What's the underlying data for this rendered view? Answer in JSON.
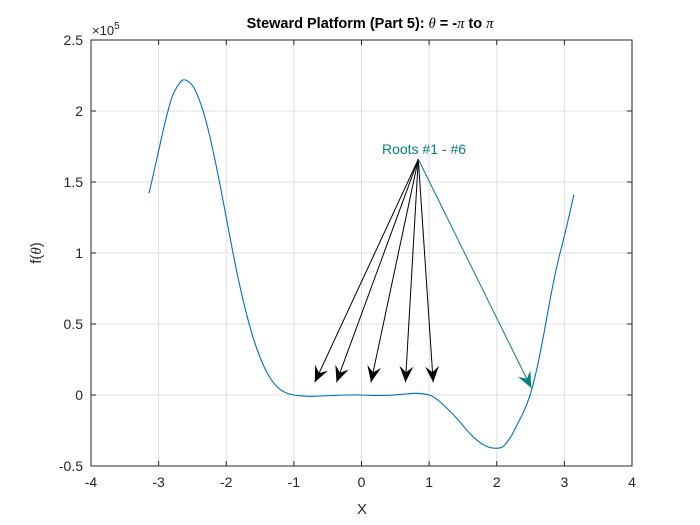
{
  "chart_data": {
    "type": "line",
    "title": "Steward Platform (Part 5):  θ = -π to π",
    "title_parts": {
      "prefix": "Steward Platform (Part 5):  ",
      "theta": "θ",
      "mid": " = -",
      "pi1": "π",
      "to": " to ",
      "pi2": "π"
    },
    "xlabel": "X",
    "ylabel": "f(θ)",
    "ylabel_parts": {
      "f": "f(",
      "theta": "θ",
      "close": ")"
    },
    "y_exponent_label": "×10",
    "y_exponent_power": "5",
    "xlim": [
      -4,
      4
    ],
    "ylim": [
      -50000,
      250000
    ],
    "xticks": [
      -4,
      -3,
      -2,
      -1,
      0,
      1,
      2,
      3,
      4
    ],
    "xtick_labels": [
      "-4",
      "-3",
      "-2",
      "-1",
      "0",
      "1",
      "2",
      "3",
      "4"
    ],
    "yticks": [
      -50000,
      0,
      50000,
      100000,
      150000,
      200000,
      250000
    ],
    "ytick_labels": [
      "-0.5",
      "0",
      "0.5",
      "1",
      "1.5",
      "2",
      "2.5"
    ],
    "grid": true,
    "series": [
      {
        "name": "f(theta)",
        "color": "#0072BD",
        "x": [
          -3.1416,
          -3.0,
          -2.9,
          -2.8,
          -2.7,
          -2.62,
          -2.5,
          -2.4,
          -2.3,
          -2.2,
          -2.1,
          -2.0,
          -1.9,
          -1.8,
          -1.7,
          -1.6,
          -1.5,
          -1.4,
          -1.3,
          -1.2,
          -1.1,
          -1.0,
          -0.9,
          -0.8,
          -0.7,
          -0.6,
          -0.4,
          -0.2,
          0.0,
          0.2,
          0.4,
          0.6,
          0.8,
          1.0,
          1.1,
          1.2,
          1.3,
          1.4,
          1.5,
          1.6,
          1.7,
          1.8,
          1.9,
          2.0,
          2.05,
          2.1,
          2.2,
          2.3,
          2.4,
          2.5,
          2.6,
          2.7,
          2.8,
          2.9,
          3.0,
          3.1416
        ],
        "y": [
          142000,
          172000,
          193000,
          210000,
          219000,
          222000,
          218000,
          208000,
          193000,
          173000,
          150000,
          125000,
          100000,
          77000,
          57000,
          40000,
          26500,
          16000,
          8500,
          3800,
          1200,
          0,
          -600,
          -900,
          -900,
          -700,
          -300,
          0,
          0,
          -300,
          -200,
          500,
          1200,
          0,
          -2500,
          -6500,
          -11000,
          -16000,
          -21500,
          -27000,
          -31500,
          -35000,
          -37000,
          -37500,
          -37200,
          -36000,
          -30000,
          -21000,
          -11500,
          1000,
          20000,
          44000,
          70000,
          93000,
          112000,
          141000
        ]
      }
    ],
    "annotations": [
      {
        "text": "Roots #1 - #6",
        "color": "#008080",
        "text_position": [
          0.45,
          170000
        ],
        "arrow_origin": [
          0.84,
          166000
        ],
        "arrows": [
          {
            "tip": [
              -0.69,
              9000
            ],
            "color": "#000000"
          },
          {
            "tip": [
              -0.37,
              9000
            ],
            "color": "#000000"
          },
          {
            "tip": [
              0.14,
              9000
            ],
            "color": "#000000"
          },
          {
            "tip": [
              0.65,
              9000
            ],
            "color": "#000000"
          },
          {
            "tip": [
              1.06,
              9000
            ],
            "color": "#000000"
          },
          {
            "tip": [
              2.51,
              5000
            ],
            "color": "#008080"
          }
        ]
      }
    ],
    "legend": null
  }
}
